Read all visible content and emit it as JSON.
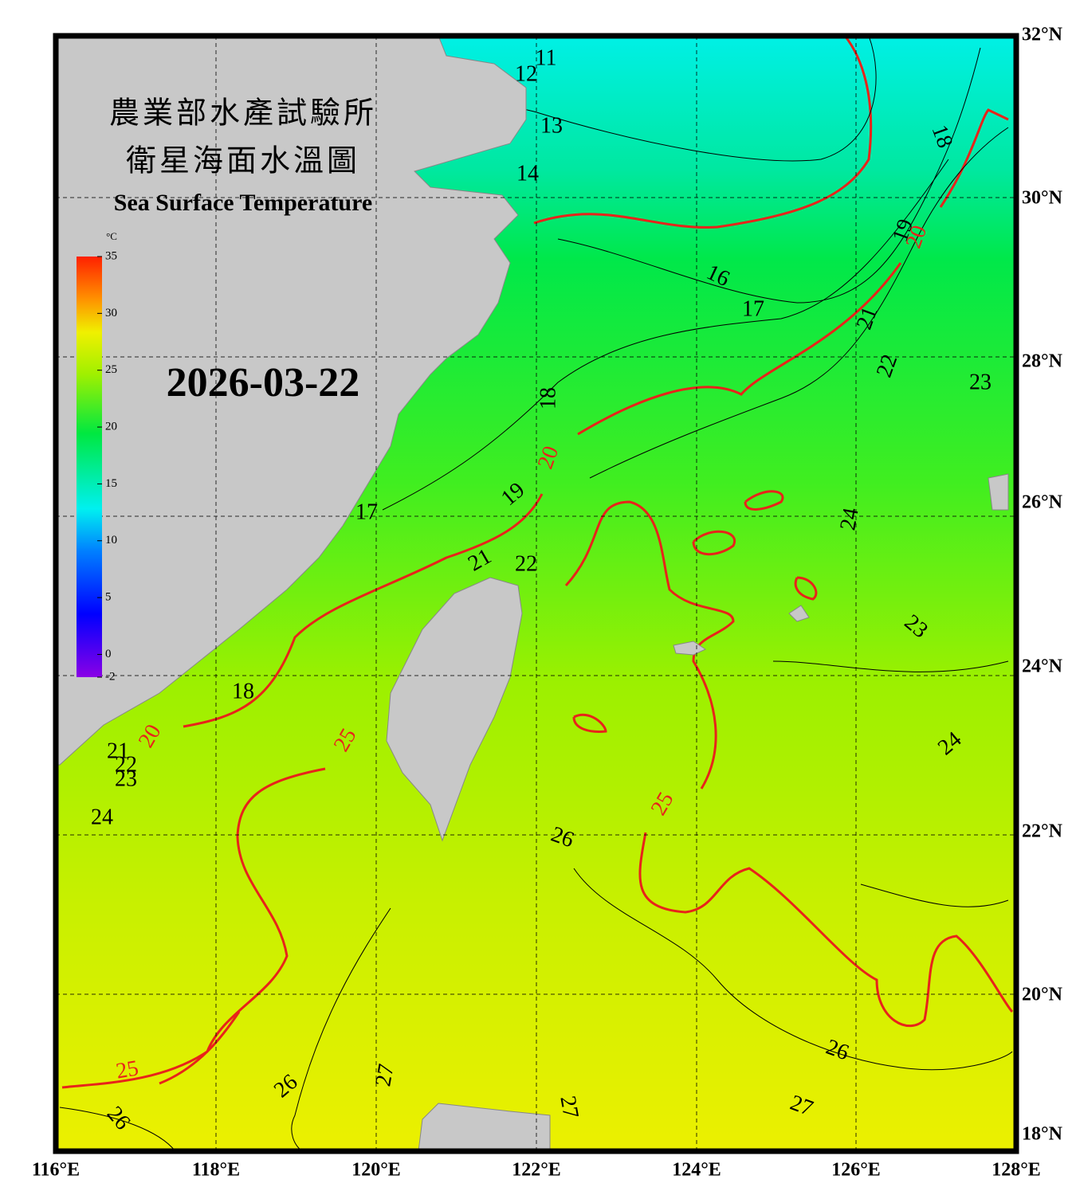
{
  "title_zh": "農業部水產試驗所",
  "subtitle_zh": "衛星海面水溫圖",
  "title_en": "Sea Surface Temperature",
  "date": "2026-03-22",
  "colorbar": {
    "unit": "°C",
    "range": [
      -2,
      35
    ],
    "ticks": [
      35,
      30,
      25,
      20,
      15,
      10,
      5,
      0,
      -2
    ]
  },
  "lon_labels": [
    "116°E",
    "118°E",
    "120°E",
    "122°E",
    "124°E",
    "126°E",
    "128°E"
  ],
  "lat_labels": [
    "32°N",
    "30°N",
    "28°N",
    "26°N",
    "24°N",
    "22°N",
    "20°N",
    "18°N"
  ],
  "contour_labels": [
    {
      "text": "11",
      "color": "#000000"
    },
    {
      "text": "12",
      "color": "#000000"
    },
    {
      "text": "13",
      "color": "#000000"
    },
    {
      "text": "14",
      "color": "#000000"
    },
    {
      "text": "16",
      "color": "#000000"
    },
    {
      "text": "17",
      "color": "#000000"
    },
    {
      "text": "18",
      "color": "#000000"
    },
    {
      "text": "19",
      "color": "#000000"
    },
    {
      "text": "20",
      "color": "#e8231a"
    },
    {
      "text": "21",
      "color": "#000000"
    },
    {
      "text": "22",
      "color": "#000000"
    },
    {
      "text": "23",
      "color": "#000000"
    },
    {
      "text": "18",
      "color": "#000000"
    },
    {
      "text": "20",
      "color": "#e8231a"
    },
    {
      "text": "19",
      "color": "#000000"
    },
    {
      "text": "17",
      "color": "#000000"
    },
    {
      "text": "21",
      "color": "#000000"
    },
    {
      "text": "22",
      "color": "#000000"
    },
    {
      "text": "24",
      "color": "#000000"
    },
    {
      "text": "23",
      "color": "#000000"
    },
    {
      "text": "18",
      "color": "#000000"
    },
    {
      "text": "20",
      "color": "#e8231a"
    },
    {
      "text": "21",
      "color": "#000000"
    },
    {
      "text": "22",
      "color": "#000000"
    },
    {
      "text": "23",
      "color": "#000000"
    },
    {
      "text": "24",
      "color": "#000000"
    },
    {
      "text": "25",
      "color": "#e8231a"
    },
    {
      "text": "24",
      "color": "#000000"
    },
    {
      "text": "25",
      "color": "#e8231a"
    },
    {
      "text": "26",
      "color": "#000000"
    },
    {
      "text": "26",
      "color": "#000000"
    },
    {
      "text": "27",
      "color": "#000000"
    },
    {
      "text": "25",
      "color": "#e8231a"
    },
    {
      "text": "26",
      "color": "#000000"
    },
    {
      "text": "27",
      "color": "#000000"
    },
    {
      "text": "26",
      "color": "#000000"
    },
    {
      "text": "27",
      "color": "#000000"
    }
  ]
}
